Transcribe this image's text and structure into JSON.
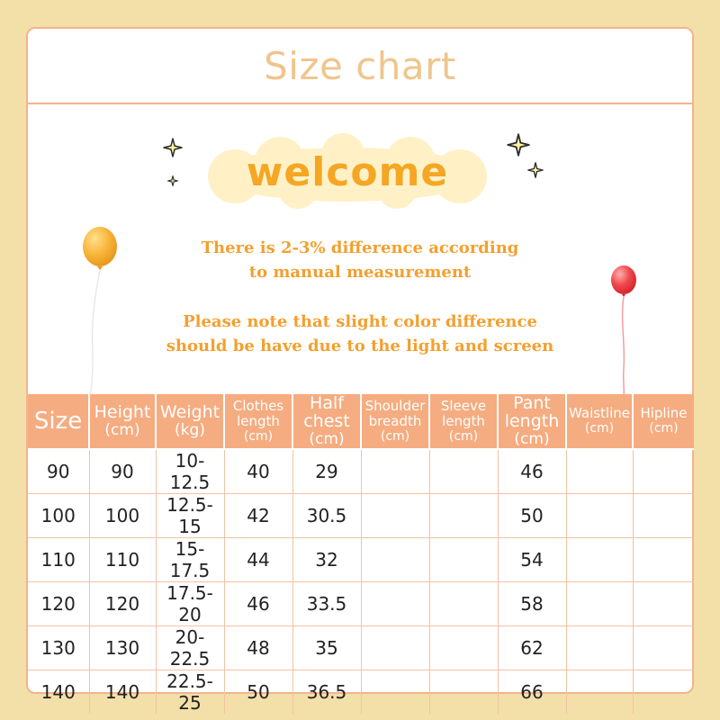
{
  "title": "Size chart",
  "welcome": "welcome",
  "notes": {
    "line1": "There is 2-3% difference according",
    "line2": "to manual measurement",
    "line3": "Please note that slight color difference",
    "line4": "should be have due to the light and screen"
  },
  "colors": {
    "page_background": "#f3dfa8",
    "border": "#f2b48c",
    "title_text": "#f0c58c",
    "header_fill": "#f5ac80",
    "note_text": "#f3a02e",
    "welcome_text": "#f5a623"
  },
  "table": {
    "headers": [
      {
        "label": "Size",
        "unit": ""
      },
      {
        "label": "Height",
        "unit": "(cm)"
      },
      {
        "label": "Weight",
        "unit": "(kg)"
      },
      {
        "label": "Clothes length",
        "unit": "(cm)"
      },
      {
        "label": "Half chest",
        "unit": "(cm)"
      },
      {
        "label": "Shoulder breadth",
        "unit": "(cm)"
      },
      {
        "label": "Sleeve length",
        "unit": "(cm)"
      },
      {
        "label": "Pant length",
        "unit": "(cm)"
      },
      {
        "label": "Waistline",
        "unit": "(cm)"
      },
      {
        "label": "Hipline",
        "unit": "(cm)"
      }
    ],
    "rows": [
      [
        "90",
        "90",
        "10-12.5",
        "40",
        "29",
        "",
        "",
        "46",
        "",
        ""
      ],
      [
        "100",
        "100",
        "12.5-15",
        "42",
        "30.5",
        "",
        "",
        "50",
        "",
        ""
      ],
      [
        "110",
        "110",
        "15-17.5",
        "44",
        "32",
        "",
        "",
        "54",
        "",
        ""
      ],
      [
        "120",
        "120",
        "17.5-20",
        "46",
        "33.5",
        "",
        "",
        "58",
        "",
        ""
      ],
      [
        "130",
        "130",
        "20-22.5",
        "48",
        "35",
        "",
        "",
        "62",
        "",
        ""
      ],
      [
        "140",
        "140",
        "22.5-25",
        "50",
        "36.5",
        "",
        "",
        "66",
        "",
        ""
      ]
    ]
  }
}
